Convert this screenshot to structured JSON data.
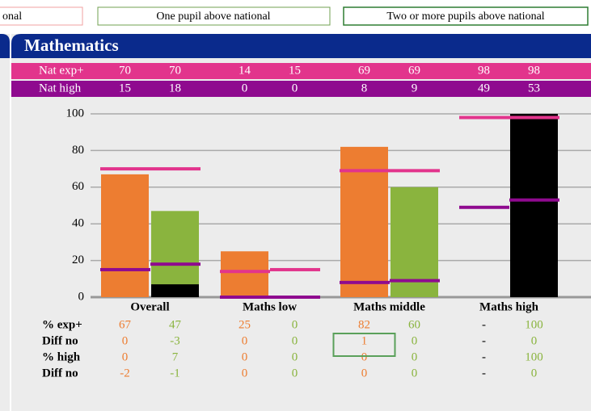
{
  "legend": [
    "onal",
    "One pupil above national",
    "Two or more pupils above national"
  ],
  "panel_title": "Mathematics",
  "chart_data": {
    "type": "bar",
    "categories": [
      "Overall",
      "Maths low",
      "Maths middle",
      "Maths high"
    ],
    "ylim": [
      0,
      100
    ],
    "yticks": [
      0,
      20,
      40,
      60,
      80,
      100
    ],
    "grid": true,
    "bar_colors": [
      "#ed7d31",
      "#8ab43e"
    ],
    "high_color": "#000000",
    "reference_rows": [
      {
        "name": "Nat exp+",
        "color": "#e2348c",
        "values": [
          70,
          70,
          14,
          15,
          69,
          69,
          98,
          98
        ]
      },
      {
        "name": "Nat high",
        "color": "#8f0a8f",
        "values": [
          15,
          18,
          0,
          0,
          8,
          9,
          49,
          53
        ]
      }
    ],
    "rows": [
      {
        "name": "% exp+",
        "values": [
          67,
          47,
          25,
          0,
          82,
          60,
          "-",
          100
        ]
      },
      {
        "name": "Diff no",
        "values": [
          0,
          -3,
          0,
          0,
          1,
          0,
          "-",
          0
        ]
      },
      {
        "name": "% high",
        "values": [
          0,
          7,
          0,
          0,
          0,
          0,
          "-",
          100
        ]
      },
      {
        "name": "Diff no",
        "values": [
          -2,
          -1,
          0,
          0,
          0,
          0,
          "-",
          0
        ]
      }
    ]
  }
}
